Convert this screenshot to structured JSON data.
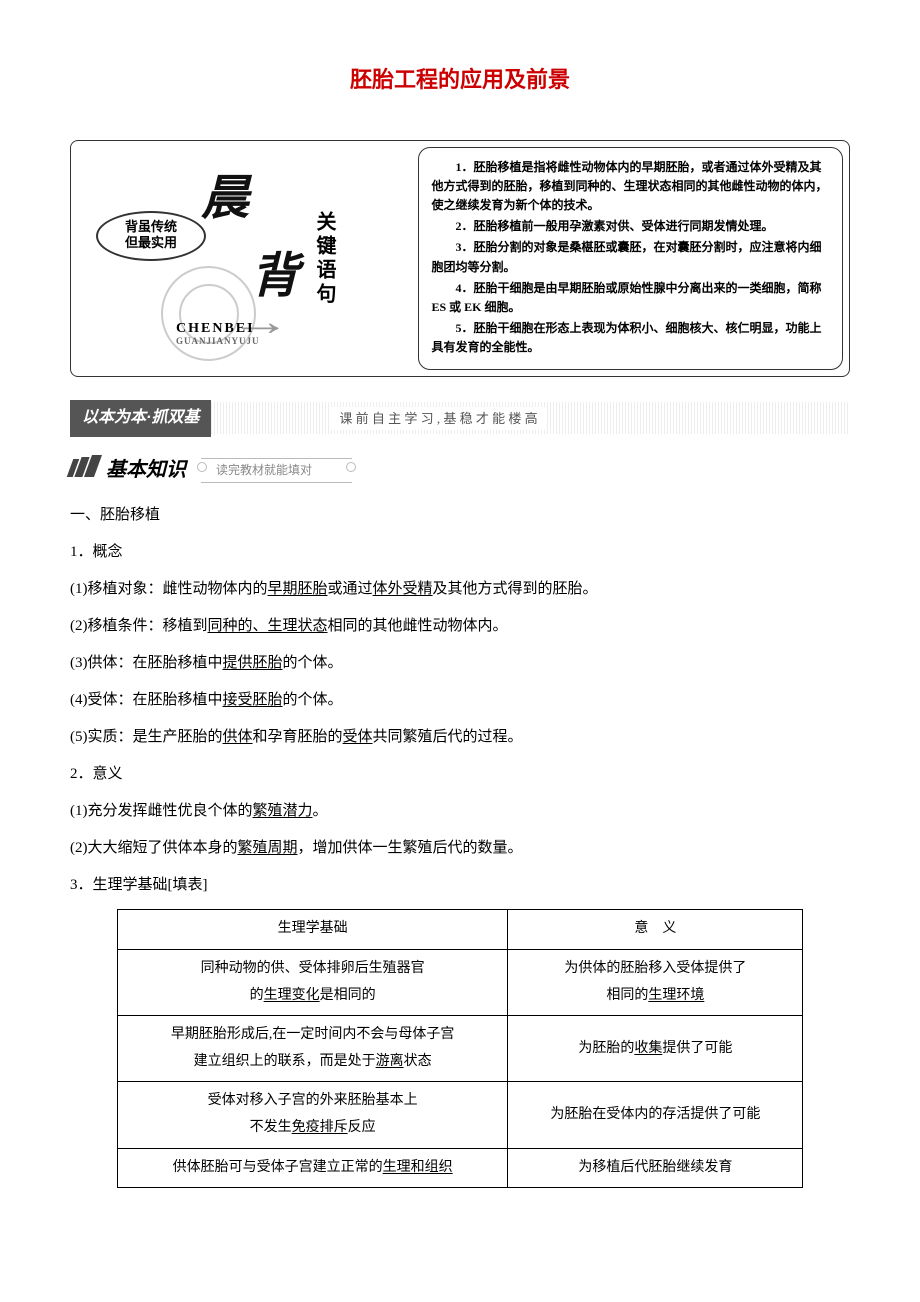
{
  "title": "胚胎工程的应用及前景",
  "chenbei": {
    "badge_l1": "背虽传统",
    "badge_l2": "但最实用",
    "chen": "晨",
    "bei": "背",
    "vertical": "关键语句",
    "pinyin": "CHENBEI",
    "pinyin2": "GUANJIANYUJU",
    "points": {
      "p1": "1．胚胎移植是指将雌性动物体内的早期胚胎，或者通过体外受精及其他方式得到的胚胎，移植到同种的、生理状态相同的其他雌性动物的体内，使之继续发育为新个体的技术。",
      "p2": "2．胚胎移植前一般用孕激素对供、受体进行同期发情处理。",
      "p3": "3．胚胎分割的对象是桑椹胚或囊胚，在对囊胚分割时，应注意将内细胞团均等分割。",
      "p4": "4．胚胎干细胞是由早期胚胎或原始性腺中分离出来的一类细胞，简称 ES 或 EK 细胞。",
      "p5": "5．胚胎干细胞在形态上表现为体积小、细胞核大、核仁明显，功能上具有发育的全能性。"
    }
  },
  "sectionBar": {
    "left": "以本为本·抓双基",
    "sub": "课 前 自 主 学 习 , 基 稳 才 能 楼 高"
  },
  "kb": {
    "title": "基本知识",
    "sub": "读完教材就能填对"
  },
  "body": {
    "h_a": "一、胚胎移植",
    "h_a1": "1．概念",
    "a1_1a": "(1)移植对象：雌性动物体内的",
    "a1_1u1": "早期胚胎",
    "a1_1b": "或通过",
    "a1_1u2": "体外受精",
    "a1_1c": "及其他方式得到的胚胎。",
    "a1_2a": "(2)移植条件：移植到",
    "a1_2u1": "同种的、生理状态",
    "a1_2b": "相同的其他雌性动物体内。",
    "a1_3a": "(3)供体：在胚胎移植中",
    "a1_3u1": "提供胚胎",
    "a1_3b": "的个体。",
    "a1_4a": "(4)受体：在胚胎移植中",
    "a1_4u1": "接受胚胎",
    "a1_4b": "的个体。",
    "a1_5a": "(5)实质：是生产胚胎的",
    "a1_5u1": "供体",
    "a1_5b": "和孕育胚胎的",
    "a1_5u2": "受体",
    "a1_5c": "共同繁殖后代的过程。",
    "h_a2": "2．意义",
    "a2_1a": "(1)充分发挥雌性优良个体的",
    "a2_1u1": "繁殖潜力",
    "a2_1b": "。",
    "a2_2a": "(2)大大缩短了供体本身的",
    "a2_2u1": "繁殖周期",
    "a2_2b": "，增加供体一生繁殖后代的数量。",
    "h_a3": "3．生理学基础[填表]"
  },
  "table": {
    "h1": "生理学基础",
    "h2": "意　义",
    "r1c1a": "同种动物的供、受体排卵后生殖器官",
    "r1c1b": "的",
    "r1c1u": "生理变化",
    "r1c1c": "是相同的",
    "r1c2a": "为供体的胚胎移入受体提供了",
    "r1c2b": "相同的",
    "r1c2u": "生理环境",
    "r2c1a": "早期胚胎形成后,在一定时间内不会与母体子宫",
    "r2c1b": "建立组织上的联系，而是处于",
    "r2c1u": "游离",
    "r2c1c": "状态",
    "r2c2a": "为胚胎的",
    "r2c2u": "收集",
    "r2c2b": "提供了可能",
    "r3c1a": "受体对移入子宫的外来胚胎基本上",
    "r3c1b": "不发生",
    "r3c1u": "免疫排斥",
    "r3c1c": "反应",
    "r3c2": "为胚胎在受体内的存活提供了可能",
    "r4c1a": "供体胚胎可与受体子宫建立正常的",
    "r4c1u": "生理和组织",
    "r4c2": "为移植后代胚胎继续发育"
  }
}
